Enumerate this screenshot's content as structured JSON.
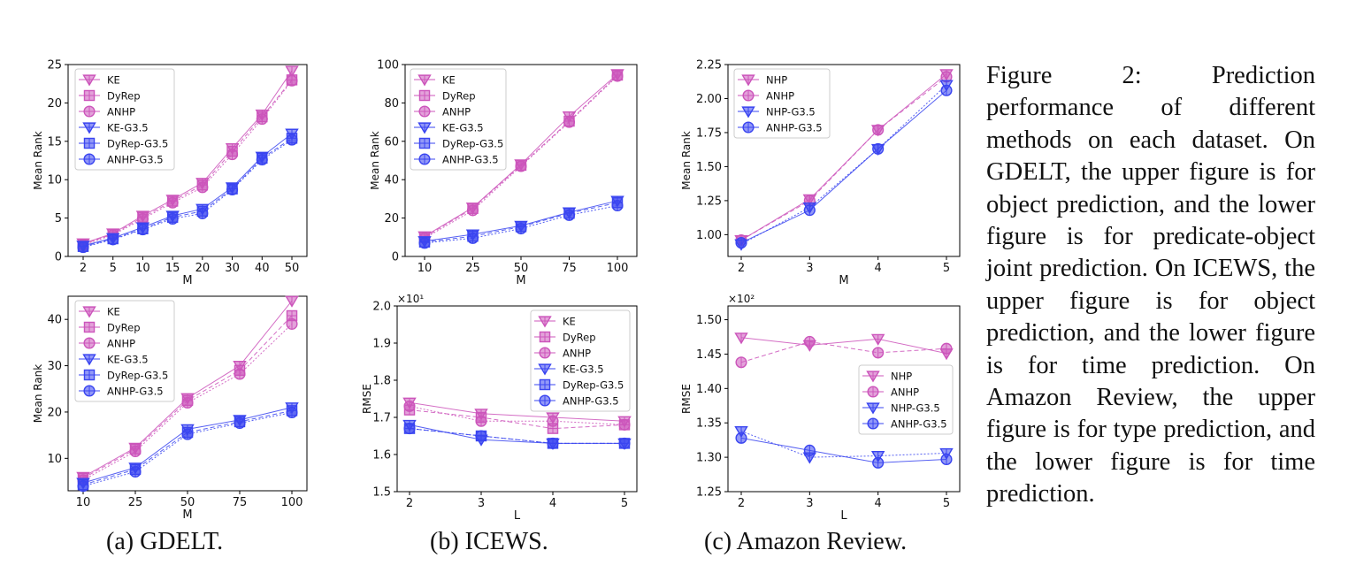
{
  "figure_caption": "Figure 2: Prediction performance of different methods on each dataset. On GDELT, the upper figure is for object prediction, and the lower figure is for predicate-object joint prediction. On ICEWS, the upper figure is for object prediction, and the lower figure is for time prediction. On Amazon Review, the upper figure is for type prediction, and the lower figure is for time prediction.",
  "subcaptions": {
    "a": "(a) GDELT.",
    "b": "(b) ICEWS.",
    "c": "(c) Amazon Review."
  },
  "colors": {
    "pink": "#cc55bb",
    "blue": "#3a45f0"
  },
  "chart_data": [
    {
      "id": "gdelt-top",
      "type": "line",
      "xlabel": "M",
      "ylabel": "Mean Rank",
      "categorical_x": true,
      "categories": [
        "2",
        "5",
        "10",
        "15",
        "20",
        "30",
        "40",
        "50"
      ],
      "ylim": [
        0,
        25
      ],
      "yticks": [
        "0",
        "5",
        "10",
        "15",
        "20",
        "25"
      ],
      "legend_position": "top-left",
      "series": [
        {
          "name": "KE",
          "color": "pink",
          "marker": "tri",
          "values": [
            1.7,
            3.0,
            5.3,
            7.4,
            9.6,
            14.1,
            18.5,
            24.2
          ]
        },
        {
          "name": "DyRep",
          "color": "pink",
          "marker": "sq",
          "values": [
            1.6,
            2.9,
            5.1,
            7.2,
            9.3,
            13.7,
            18.2,
            23.0
          ]
        },
        {
          "name": "ANHP",
          "color": "pink",
          "marker": "circ",
          "values": [
            1.5,
            2.8,
            4.9,
            7.0,
            9.0,
            13.3,
            17.9,
            22.9
          ]
        },
        {
          "name": "KE-G3.5",
          "color": "blue",
          "marker": "tri",
          "values": [
            1.4,
            2.4,
            3.8,
            5.3,
            6.2,
            9.0,
            13.0,
            16.0
          ]
        },
        {
          "name": "DyRep-G3.5",
          "color": "blue",
          "marker": "sq",
          "values": [
            1.3,
            2.3,
            3.6,
            5.1,
            5.9,
            8.8,
            12.8,
            15.4
          ]
        },
        {
          "name": "ANHP-G3.5",
          "color": "blue",
          "marker": "circ",
          "values": [
            1.2,
            2.2,
            3.5,
            4.9,
            5.6,
            8.7,
            12.6,
            15.2
          ]
        }
      ]
    },
    {
      "id": "gdelt-bottom",
      "type": "line",
      "xlabel": "M",
      "ylabel": "Mean Rank",
      "categorical_x": true,
      "categories": [
        "10",
        "25",
        "50",
        "75",
        "100"
      ],
      "ylim": [
        3,
        45
      ],
      "yticks": [
        "10",
        "20",
        "30",
        "40"
      ],
      "ytick_values": [
        10,
        20,
        30,
        40
      ],
      "legend_position": "top-left",
      "series": [
        {
          "name": "KE",
          "color": "pink",
          "marker": "tri",
          "values": [
            6.0,
            12.3,
            23.0,
            30.0,
            44.0
          ]
        },
        {
          "name": "DyRep",
          "color": "pink",
          "marker": "sq",
          "values": [
            5.7,
            12.0,
            22.5,
            29.0,
            40.8
          ]
        },
        {
          "name": "ANHP",
          "color": "pink",
          "marker": "circ",
          "values": [
            5.3,
            11.5,
            22.0,
            28.2,
            39.0
          ]
        },
        {
          "name": "KE-G3.5",
          "color": "blue",
          "marker": "tri",
          "values": [
            4.7,
            8.0,
            16.3,
            18.3,
            21.0
          ]
        },
        {
          "name": "DyRep-G3.5",
          "color": "blue",
          "marker": "sq",
          "values": [
            4.3,
            7.6,
            15.6,
            17.9,
            20.3
          ]
        },
        {
          "name": "ANHP-G3.5",
          "color": "blue",
          "marker": "circ",
          "values": [
            4.0,
            7.1,
            15.2,
            17.6,
            19.9
          ]
        }
      ]
    },
    {
      "id": "icews-top",
      "type": "line",
      "xlabel": "M",
      "ylabel": "Mean Rank",
      "categorical_x": true,
      "categories": [
        "10",
        "25",
        "50",
        "75",
        "100"
      ],
      "ylim": [
        0,
        100
      ],
      "yticks": [
        "0",
        "20",
        "40",
        "60",
        "80",
        "100"
      ],
      "legend_position": "top-left",
      "series": [
        {
          "name": "KE",
          "color": "pink",
          "marker": "tri",
          "values": [
            10.5,
            25.5,
            48.0,
            73.0,
            95.0
          ]
        },
        {
          "name": "DyRep",
          "color": "pink",
          "marker": "sq",
          "values": [
            10.0,
            25.0,
            47.5,
            70.5,
            94.5
          ]
        },
        {
          "name": "ANHP",
          "color": "pink",
          "marker": "circ",
          "values": [
            9.5,
            24.0,
            47.0,
            70.0,
            94.0
          ]
        },
        {
          "name": "KE-G3.5",
          "color": "blue",
          "marker": "tri",
          "values": [
            8.0,
            11.5,
            16.0,
            23.0,
            29.0
          ]
        },
        {
          "name": "DyRep-G3.5",
          "color": "blue",
          "marker": "sq",
          "values": [
            7.5,
            10.5,
            15.5,
            22.5,
            28.0
          ]
        },
        {
          "name": "ANHP-G3.5",
          "color": "blue",
          "marker": "circ",
          "values": [
            7.0,
            9.5,
            14.5,
            21.5,
            26.5
          ]
        }
      ]
    },
    {
      "id": "icews-bottom",
      "type": "line",
      "xlabel": "L",
      "ylabel": "RMSE",
      "categorical_x": false,
      "categories": [
        "2",
        "3",
        "4",
        "5"
      ],
      "ylim": [
        1.5,
        2.0
      ],
      "yticks": [
        "1.5",
        "1.6",
        "1.7",
        "1.8",
        "1.9",
        "2.0"
      ],
      "offset_text": "×10¹",
      "legend_position": "top-right",
      "series": [
        {
          "name": "KE",
          "color": "pink",
          "marker": "tri",
          "values": [
            1.74,
            1.71,
            1.7,
            1.69
          ]
        },
        {
          "name": "DyRep",
          "color": "pink",
          "marker": "sq",
          "values": [
            1.72,
            1.7,
            1.67,
            1.68
          ]
        },
        {
          "name": "ANHP",
          "color": "pink",
          "marker": "circ",
          "values": [
            1.73,
            1.69,
            1.69,
            1.68
          ]
        },
        {
          "name": "KE-G3.5",
          "color": "blue",
          "marker": "tri",
          "values": [
            1.68,
            1.64,
            1.63,
            1.63
          ]
        },
        {
          "name": "DyRep-G3.5",
          "color": "blue",
          "marker": "sq",
          "values": [
            1.67,
            1.65,
            1.63,
            1.63
          ]
        },
        {
          "name": "ANHP-G3.5",
          "color": "blue",
          "marker": "circ",
          "values": [
            1.67,
            1.65,
            1.63,
            1.63
          ]
        }
      ]
    },
    {
      "id": "amazon-top",
      "type": "line",
      "xlabel": "M",
      "ylabel": "Mean Rank",
      "categorical_x": false,
      "categories": [
        "2",
        "3",
        "4",
        "5"
      ],
      "ylim": [
        0.84,
        2.25
      ],
      "yticks": [
        "1.00",
        "1.25",
        "1.50",
        "1.75",
        "2.00",
        "2.25"
      ],
      "ytick_values": [
        1.0,
        1.25,
        1.5,
        1.75,
        2.0,
        2.25
      ],
      "legend_position": "top-left",
      "series": [
        {
          "name": "NHP",
          "color": "pink",
          "marker": "tri",
          "values": [
            0.96,
            1.26,
            1.77,
            2.18
          ]
        },
        {
          "name": "ANHP",
          "color": "pink",
          "marker": "circ",
          "values": [
            0.96,
            1.25,
            1.77,
            2.16
          ]
        },
        {
          "name": "NHP-G3.5",
          "color": "blue",
          "marker": "tri",
          "values": [
            0.93,
            1.2,
            1.63,
            2.1
          ]
        },
        {
          "name": "ANHP-G3.5",
          "color": "blue",
          "marker": "circ",
          "values": [
            0.94,
            1.18,
            1.63,
            2.06
          ]
        }
      ]
    },
    {
      "id": "amazon-bottom",
      "type": "line",
      "xlabel": "L",
      "ylabel": "RMSE",
      "categorical_x": false,
      "categories": [
        "2",
        "3",
        "4",
        "5"
      ],
      "ylim": [
        1.25,
        1.52
      ],
      "yticks": [
        "1.25",
        "1.30",
        "1.35",
        "1.40",
        "1.45",
        "1.50"
      ],
      "ytick_values": [
        1.25,
        1.3,
        1.35,
        1.4,
        1.45,
        1.5
      ],
      "offset_text": "×10²",
      "legend_position": "right",
      "series": [
        {
          "name": "NHP",
          "color": "pink",
          "marker": "tri",
          "values": [
            1.474,
            1.463,
            1.472,
            1.451
          ]
        },
        {
          "name": "ANHP",
          "color": "pink",
          "marker": "circ",
          "values": [
            1.438,
            1.468,
            1.452,
            1.458
          ]
        },
        {
          "name": "NHP-G3.5",
          "color": "blue",
          "marker": "tri",
          "values": [
            1.338,
            1.3,
            1.302,
            1.306
          ]
        },
        {
          "name": "ANHP-G3.5",
          "color": "blue",
          "marker": "circ",
          "values": [
            1.328,
            1.31,
            1.292,
            1.297
          ]
        }
      ]
    }
  ]
}
